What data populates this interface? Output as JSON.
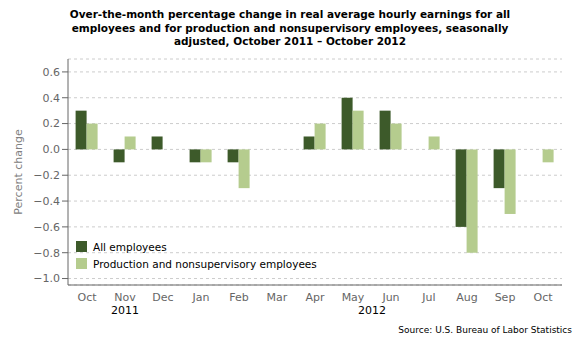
{
  "chart_data": {
    "type": "bar",
    "title": "Over-the-month percentage change in real average hourly earnings for all\nemployees and for production and nonsupervisory employees, seasonally\nadjusted, October 2011 – October 2012",
    "y_label": "Percent change",
    "annotations": [
      "2011",
      "2012",
      "Source: U.S. Bureau of Labor Statistics"
    ],
    "categories": [
      "Oct",
      "Nov",
      "Dec",
      "Jan",
      "Feb",
      "Mar",
      "Apr",
      "May",
      "Jun",
      "Jul",
      "Aug",
      "Sep",
      "Oct"
    ],
    "series": [
      {
        "name": "All employees",
        "color": "#3d5a2a",
        "values": [
          0.3,
          -0.1,
          0.1,
          -0.1,
          -0.1,
          0.0,
          0.1,
          0.4,
          0.3,
          0.0,
          -0.6,
          -0.3,
          0.0
        ]
      },
      {
        "name": "Production and nonsupervisory employees",
        "color": "#b5cc8e",
        "values": [
          0.2,
          0.1,
          0.0,
          -0.1,
          -0.3,
          0.0,
          0.2,
          0.3,
          0.2,
          0.1,
          -0.8,
          -0.5,
          -0.1
        ]
      }
    ],
    "ylim": [
      -1.05,
      0.7
    ],
    "yticks": [
      {
        "value": -1.0,
        "label": "−1.0"
      },
      {
        "value": -0.8,
        "label": "−0.8"
      },
      {
        "value": -0.6,
        "label": "−0.6"
      },
      {
        "value": -0.4,
        "label": "−0.4"
      },
      {
        "value": -0.2,
        "label": "−0.2"
      },
      {
        "value": 0.0,
        "label": "0.0"
      },
      {
        "value": 0.2,
        "label": "0.2"
      },
      {
        "value": 0.4,
        "label": "0.4"
      },
      {
        "value": 0.6,
        "label": "0.6"
      }
    ],
    "grid": true,
    "legend": "lower left"
  }
}
